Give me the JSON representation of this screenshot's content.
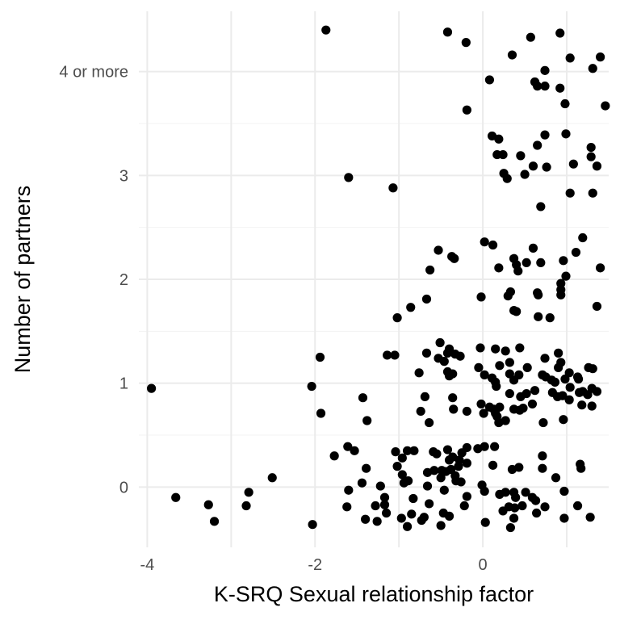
{
  "chart_data": {
    "type": "scatter",
    "title": "",
    "xlabel": "K-SRQ Sexual relationship factor",
    "ylabel": "Number of partners",
    "xlim": [
      -4.1,
      1.5
    ],
    "ylim": [
      -0.58,
      4.58
    ],
    "x_ticks": [
      {
        "value": -4,
        "label": "-4"
      },
      {
        "value": -2,
        "label": "-2"
      },
      {
        "value": 0,
        "label": "0"
      }
    ],
    "x_gridlines": [
      -4,
      -3,
      -2,
      -1,
      0,
      1
    ],
    "y_ticks": [
      {
        "value": 0,
        "label": "0"
      },
      {
        "value": 1,
        "label": "1"
      },
      {
        "value": 2,
        "label": "2"
      },
      {
        "value": 3,
        "label": "3"
      },
      {
        "value": 4,
        "label": "4 or more"
      }
    ],
    "grid": true,
    "legend": "none",
    "point_color": "#000000",
    "points": [
      [
        -1.87,
        4.4
      ],
      [
        -0.42,
        4.38
      ],
      [
        -0.2,
        4.28
      ],
      [
        0.57,
        4.33
      ],
      [
        0.92,
        4.37
      ],
      [
        0.35,
        4.16
      ],
      [
        1.04,
        4.13
      ],
      [
        1.4,
        4.14
      ],
      [
        0.08,
        3.92
      ],
      [
        0.62,
        3.9
      ],
      [
        0.65,
        3.86
      ],
      [
        0.74,
        3.86
      ],
      [
        0.92,
        3.84
      ],
      [
        0.74,
        4.01
      ],
      [
        1.31,
        4.03
      ],
      [
        0.98,
        3.69
      ],
      [
        1.46,
        3.67
      ],
      [
        -0.19,
        3.63
      ],
      [
        0.11,
        3.38
      ],
      [
        0.19,
        3.35
      ],
      [
        0.99,
        3.4
      ],
      [
        0.74,
        3.39
      ],
      [
        0.65,
        3.29
      ],
      [
        1.29,
        3.27
      ],
      [
        0.17,
        3.2
      ],
      [
        0.24,
        3.2
      ],
      [
        0.45,
        3.19
      ],
      [
        0.6,
        3.09
      ],
      [
        0.76,
        3.08
      ],
      [
        1.29,
        3.18
      ],
      [
        1.08,
        3.11
      ],
      [
        1.36,
        3.09
      ],
      [
        -1.6,
        2.98
      ],
      [
        -1.07,
        2.88
      ],
      [
        0.25,
        3.02
      ],
      [
        0.29,
        2.97
      ],
      [
        0.5,
        3.01
      ],
      [
        1.04,
        2.83
      ],
      [
        1.31,
        2.83
      ],
      [
        0.69,
        2.7
      ],
      [
        -0.53,
        2.28
      ],
      [
        0.02,
        2.36
      ],
      [
        0.12,
        2.33
      ],
      [
        1.19,
        2.4
      ],
      [
        -0.37,
        2.22
      ],
      [
        -0.34,
        2.2
      ],
      [
        0.37,
        2.2
      ],
      [
        0.6,
        2.3
      ],
      [
        0.52,
        2.16
      ],
      [
        0.69,
        2.16
      ],
      [
        1.11,
        2.26
      ],
      [
        -0.63,
        2.09
      ],
      [
        0.19,
        2.11
      ],
      [
        0.4,
        2.14
      ],
      [
        0.42,
        2.08
      ],
      [
        0.96,
        2.18
      ],
      [
        1.4,
        2.11
      ],
      [
        0.93,
        1.96
      ],
      [
        0.99,
        2.03
      ],
      [
        0.93,
        1.9
      ],
      [
        0.3,
        1.84
      ],
      [
        0.33,
        1.88
      ],
      [
        0.65,
        1.87
      ],
      [
        0.66,
        1.85
      ],
      [
        0.93,
        1.85
      ],
      [
        -0.02,
        1.83
      ],
      [
        -0.67,
        1.81
      ],
      [
        -0.86,
        1.73
      ],
      [
        0.37,
        1.7
      ],
      [
        0.4,
        1.69
      ],
      [
        1.36,
        1.74
      ],
      [
        -1.02,
        1.63
      ],
      [
        0.8,
        1.63
      ],
      [
        0.66,
        1.64
      ],
      [
        -0.51,
        1.39
      ],
      [
        -0.4,
        1.33
      ],
      [
        -0.42,
        1.29
      ],
      [
        -0.33,
        1.28
      ],
      [
        -0.67,
        1.29
      ],
      [
        -0.03,
        1.34
      ],
      [
        0.15,
        1.33
      ],
      [
        0.44,
        1.34
      ],
      [
        0.74,
        1.24
      ],
      [
        0.27,
        1.31
      ],
      [
        0.9,
        1.29
      ],
      [
        -1.94,
        1.25
      ],
      [
        -1.14,
        1.27
      ],
      [
        -1.05,
        1.27
      ],
      [
        -0.53,
        1.24
      ],
      [
        -0.46,
        1.21
      ],
      [
        -0.27,
        1.26
      ],
      [
        0.2,
        1.17
      ],
      [
        0.32,
        1.2
      ],
      [
        0.93,
        1.2
      ],
      [
        1.26,
        1.15
      ],
      [
        1.31,
        1.14
      ],
      [
        0.02,
        1.08
      ],
      [
        0.11,
        1.05
      ],
      [
        0.32,
        1.09
      ],
      [
        0.43,
        1.08
      ],
      [
        0.71,
        1.08
      ],
      [
        0.75,
        1.06
      ],
      [
        0.82,
        1.03
      ],
      [
        0.98,
        1.04
      ],
      [
        1.13,
        1.06
      ],
      [
        -0.42,
        1.11
      ],
      [
        -0.36,
        1.09
      ],
      [
        -0.4,
        1.07
      ],
      [
        -0.05,
        1.15
      ],
      [
        0.53,
        1.15
      ],
      [
        0.9,
        1.15
      ],
      [
        1.03,
        1.1
      ],
      [
        1.14,
        1.04
      ],
      [
        -0.76,
        1.1
      ],
      [
        -2.04,
        0.97
      ],
      [
        -3.95,
        0.95
      ],
      [
        0.15,
        1.01
      ],
      [
        0.37,
        1.03
      ],
      [
        0.86,
        1.01
      ],
      [
        0.16,
        0.97
      ],
      [
        0.62,
        0.93
      ],
      [
        0.52,
        0.9
      ],
      [
        0.83,
        0.91
      ],
      [
        1.04,
        0.96
      ],
      [
        1.15,
        0.91
      ],
      [
        1.19,
        0.92
      ],
      [
        1.3,
        0.95
      ],
      [
        1.36,
        0.92
      ],
      [
        0.32,
        0.9
      ],
      [
        0.45,
        0.87
      ],
      [
        0.89,
        0.87
      ],
      [
        0.95,
        0.88
      ],
      [
        1.03,
        0.84
      ],
      [
        1.25,
        0.89
      ],
      [
        -0.69,
        0.87
      ],
      [
        -1.43,
        0.86
      ],
      [
        -0.36,
        0.86
      ],
      [
        -0.02,
        0.8
      ],
      [
        0.2,
        0.77
      ],
      [
        0.13,
        0.75
      ],
      [
        -0.35,
        0.75
      ],
      [
        0.08,
        0.77
      ],
      [
        0.37,
        0.75
      ],
      [
        0.44,
        0.74
      ],
      [
        0.48,
        0.76
      ],
      [
        0.59,
        0.8
      ],
      [
        1.18,
        0.79
      ],
      [
        1.3,
        0.78
      ],
      [
        -0.74,
        0.73
      ],
      [
        -0.19,
        0.73
      ],
      [
        0.01,
        0.71
      ],
      [
        0.15,
        0.71
      ],
      [
        0.17,
        0.68
      ],
      [
        0.27,
        0.64
      ],
      [
        0.19,
        0.62
      ],
      [
        0.72,
        0.62
      ],
      [
        0.96,
        0.65
      ],
      [
        -1.93,
        0.71
      ],
      [
        -1.38,
        0.64
      ],
      [
        -0.64,
        0.62
      ],
      [
        -1.61,
        0.39
      ],
      [
        -1.53,
        0.35
      ],
      [
        -1.04,
        0.34
      ],
      [
        -0.9,
        0.35
      ],
      [
        -0.82,
        0.35
      ],
      [
        -0.59,
        0.34
      ],
      [
        -0.55,
        0.32
      ],
      [
        -0.19,
        0.38
      ],
      [
        0.02,
        0.39
      ],
      [
        0.14,
        0.39
      ],
      [
        -0.36,
        0.29
      ],
      [
        -0.42,
        0.36
      ],
      [
        -0.25,
        0.33
      ],
      [
        -0.06,
        0.37
      ],
      [
        0.71,
        0.3
      ],
      [
        -1.77,
        0.3
      ],
      [
        -0.96,
        0.28
      ],
      [
        -0.28,
        0.26
      ],
      [
        -0.4,
        0.26
      ],
      [
        -0.29,
        0.2
      ],
      [
        -0.19,
        0.23
      ],
      [
        -1.02,
        0.2
      ],
      [
        0.12,
        0.21
      ],
      [
        1.16,
        0.22
      ],
      [
        1.17,
        0.18
      ],
      [
        -0.44,
        0.15
      ],
      [
        -0.38,
        0.17
      ],
      [
        0.35,
        0.17
      ],
      [
        0.43,
        0.19
      ],
      [
        0.71,
        0.18
      ],
      [
        -0.58,
        0.16
      ],
      [
        -0.66,
        0.14
      ],
      [
        -0.49,
        0.16
      ],
      [
        -1.39,
        0.18
      ],
      [
        -0.96,
        0.12
      ],
      [
        -0.33,
        0.11
      ],
      [
        -2.51,
        0.09
      ],
      [
        -1.44,
        0.04
      ],
      [
        -0.94,
        0.04
      ],
      [
        -0.89,
        0.06
      ],
      [
        -0.32,
        0.06
      ],
      [
        -0.26,
        0.05
      ],
      [
        -0.01,
        0.02
      ],
      [
        -1.22,
        0.01
      ],
      [
        -0.66,
        0.01
      ],
      [
        -0.5,
        0.09
      ],
      [
        0.87,
        0.09
      ],
      [
        -0.46,
        -0.03
      ],
      [
        -1.6,
        -0.03
      ],
      [
        -2.79,
        -0.05
      ],
      [
        0.02,
        -0.04
      ],
      [
        0.2,
        -0.07
      ],
      [
        0.27,
        -0.05
      ],
      [
        0.37,
        -0.05
      ],
      [
        0.51,
        -0.05
      ],
      [
        0.97,
        -0.04
      ],
      [
        -3.66,
        -0.1
      ],
      [
        -1.17,
        -0.1
      ],
      [
        -0.83,
        -0.11
      ],
      [
        -0.19,
        -0.09
      ],
      [
        0.39,
        -0.1
      ],
      [
        0.59,
        -0.1
      ],
      [
        0.63,
        -0.13
      ],
      [
        -3.27,
        -0.17
      ],
      [
        -2.82,
        -0.18
      ],
      [
        -1.62,
        -0.19
      ],
      [
        -1.28,
        -0.18
      ],
      [
        -1.17,
        -0.17
      ],
      [
        -0.64,
        -0.16
      ],
      [
        -0.22,
        -0.18
      ],
      [
        0.31,
        -0.19
      ],
      [
        0.38,
        -0.2
      ],
      [
        0.47,
        -0.18
      ],
      [
        0.74,
        -0.19
      ],
      [
        1.13,
        -0.18
      ],
      [
        -1.15,
        -0.25
      ],
      [
        -0.85,
        -0.26
      ],
      [
        -0.47,
        -0.25
      ],
      [
        0.24,
        -0.23
      ],
      [
        0.64,
        -0.25
      ],
      [
        -3.2,
        -0.33
      ],
      [
        -1.4,
        -0.31
      ],
      [
        -1.26,
        -0.33
      ],
      [
        -0.97,
        -0.3
      ],
      [
        -0.73,
        -0.32
      ],
      [
        -0.7,
        -0.29
      ],
      [
        -0.4,
        -0.28
      ],
      [
        0.37,
        -0.3
      ],
      [
        0.97,
        -0.3
      ],
      [
        1.28,
        -0.29
      ],
      [
        -2.03,
        -0.36
      ],
      [
        -0.9,
        -0.38
      ],
      [
        -0.5,
        -0.37
      ],
      [
        0.03,
        -0.34
      ],
      [
        0.33,
        -0.39
      ]
    ]
  }
}
